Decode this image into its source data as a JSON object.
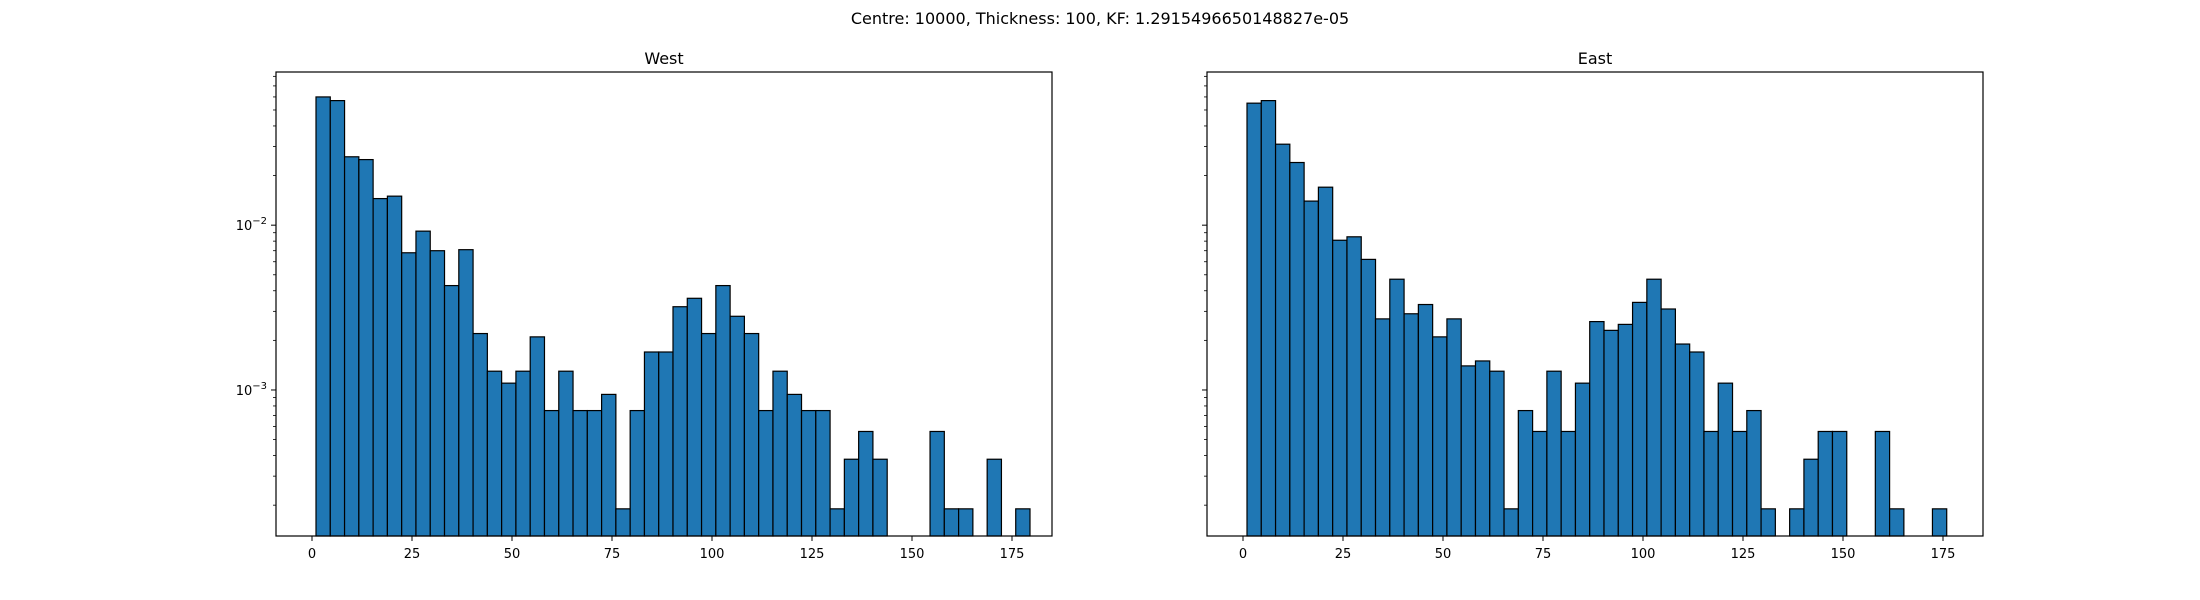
{
  "figure": {
    "suptitle": "Centre: 10000, Thickness: 100, KF: 1.2915496650148827e-05"
  },
  "chart_data": [
    {
      "type": "bar",
      "title": "West",
      "xlabel": "",
      "ylabel": "",
      "yscale": "log",
      "xlim": [
        -9,
        185
      ],
      "ylim": [
        0.00013,
        0.085
      ],
      "bin_width": 3.57,
      "bin_start": 1,
      "x_ticks": [
        0,
        25,
        50,
        75,
        100,
        125,
        150,
        175
      ],
      "y_ticks": [
        {
          "value": 0.01,
          "base": "10",
          "exp": "−2"
        },
        {
          "value": 0.001,
          "base": "10",
          "exp": "−3"
        }
      ],
      "color": "#1f77b4",
      "edge_color": "#000000",
      "grid": false,
      "values": [
        0.06,
        0.057,
        0.026,
        0.025,
        0.0145,
        0.015,
        0.0068,
        0.0092,
        0.007,
        0.0043,
        0.0071,
        0.0022,
        0.0013,
        0.0011,
        0.0013,
        0.0021,
        0.00075,
        0.0013,
        0.00075,
        0.00075,
        0.00094,
        0.00019,
        0.00075,
        0.0017,
        0.0017,
        0.0032,
        0.0036,
        0.0022,
        0.0043,
        0.0028,
        0.0022,
        0.00075,
        0.0013,
        0.00094,
        0.00075,
        0.00075,
        0.00019,
        0.00038,
        0.00056,
        0.00038,
        0,
        0,
        0,
        0.00056,
        0.00019,
        0.00019,
        0,
        0.00038,
        0,
        0.00019
      ]
    },
    {
      "type": "bar",
      "title": "East",
      "xlabel": "",
      "ylabel": "",
      "yscale": "log",
      "xlim": [
        -9,
        185
      ],
      "ylim": [
        0.00013,
        0.085
      ],
      "bin_width": 3.57,
      "bin_start": 1,
      "x_ticks": [
        0,
        25,
        50,
        75,
        100,
        125,
        150,
        175
      ],
      "y_ticks": [],
      "color": "#1f77b4",
      "edge_color": "#000000",
      "grid": false,
      "values": [
        0.055,
        0.057,
        0.031,
        0.024,
        0.014,
        0.017,
        0.0081,
        0.0085,
        0.0062,
        0.0027,
        0.0047,
        0.0029,
        0.0033,
        0.0021,
        0.0027,
        0.0014,
        0.0015,
        0.0013,
        0.00019,
        0.00075,
        0.00056,
        0.0013,
        0.00056,
        0.0011,
        0.0026,
        0.0023,
        0.0025,
        0.0034,
        0.0047,
        0.0031,
        0.0019,
        0.0017,
        0.00056,
        0.0011,
        0.00056,
        0.00075,
        0.00019,
        0,
        0.00019,
        0.00038,
        0.00056,
        0.00056,
        0,
        0,
        0.00056,
        0.00019,
        0,
        0,
        0.00019,
        0
      ]
    }
  ]
}
